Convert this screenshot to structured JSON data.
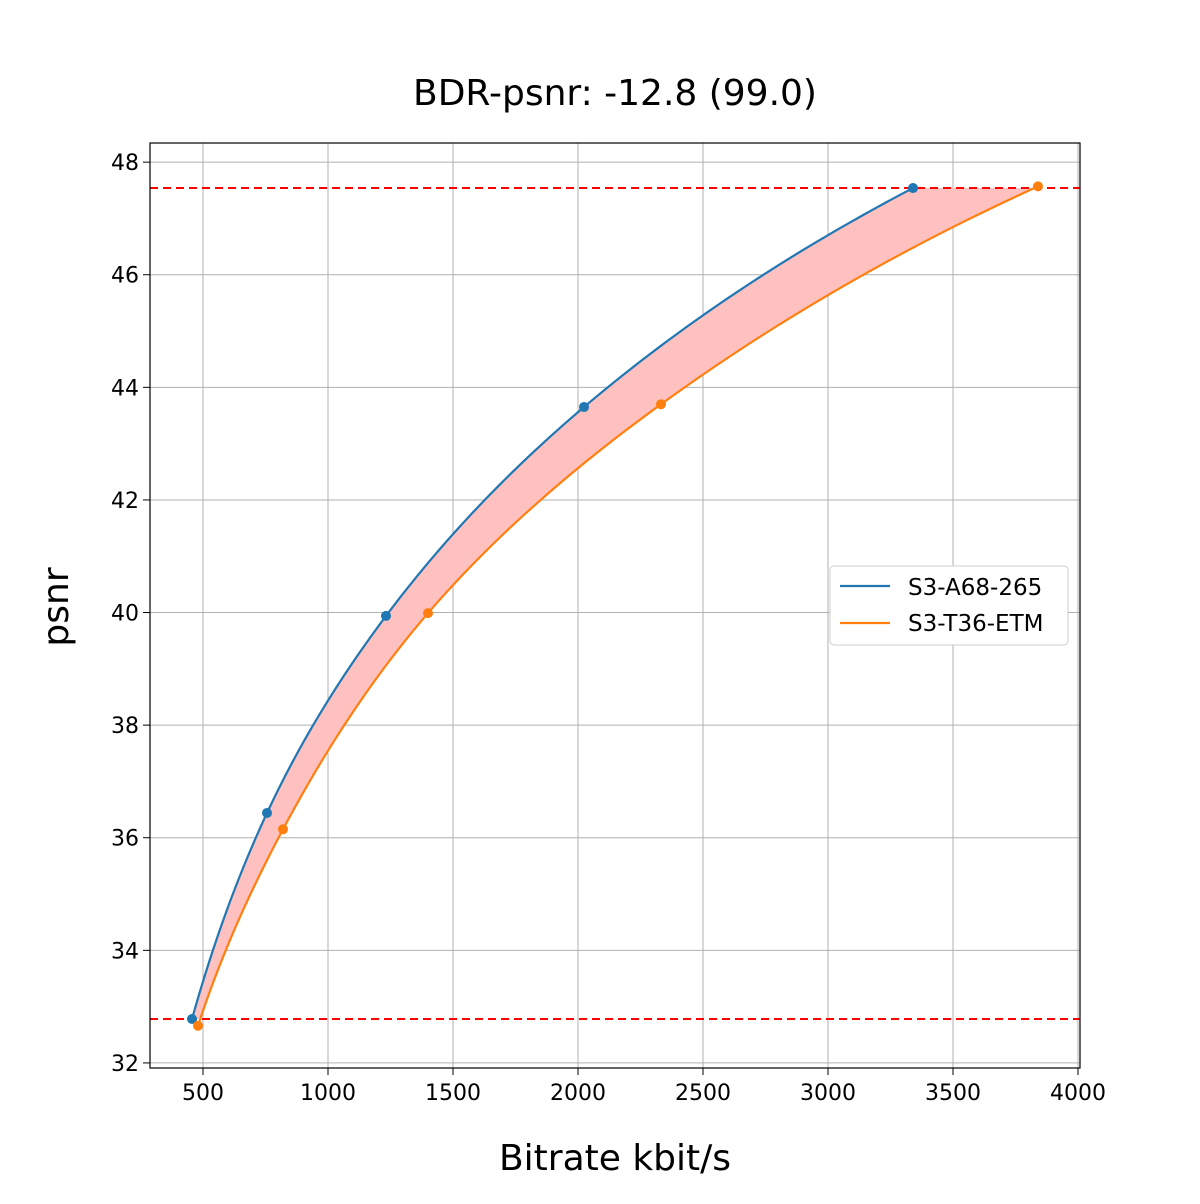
{
  "chart_data": {
    "type": "line",
    "title": "BDR-psnr: -12.8 (99.0)",
    "xlabel": "Bitrate kbit/s",
    "ylabel": "psnr",
    "xlim": [
      288,
      4008
    ],
    "ylim": [
      31.91,
      48.34
    ],
    "xticks": [
      500,
      1000,
      1500,
      2000,
      2500,
      3000,
      3500,
      4000
    ],
    "yticks": [
      32,
      34,
      36,
      38,
      40,
      42,
      44,
      46,
      48
    ],
    "grid": true,
    "legend_placement": "center-right",
    "series": [
      {
        "name": "S3-A68-265",
        "color": "#1f77b4",
        "x": [
          456,
          756,
          1232,
          2024,
          3340
        ],
        "y": [
          32.78,
          36.44,
          39.94,
          43.65,
          47.54
        ]
      },
      {
        "name": "S3-T36-ETM",
        "color": "#ff7f0e",
        "x": [
          480,
          820,
          1400,
          2332,
          3840
        ],
        "y": [
          32.66,
          36.15,
          39.99,
          43.7,
          47.57
        ]
      }
    ],
    "reference_lines": {
      "y": [
        32.78,
        47.54
      ],
      "color": "#ff0000",
      "style": "dashed"
    },
    "fill_between": {
      "color": "#ffc0c0",
      "y_range": [
        32.78,
        47.54
      ]
    }
  }
}
